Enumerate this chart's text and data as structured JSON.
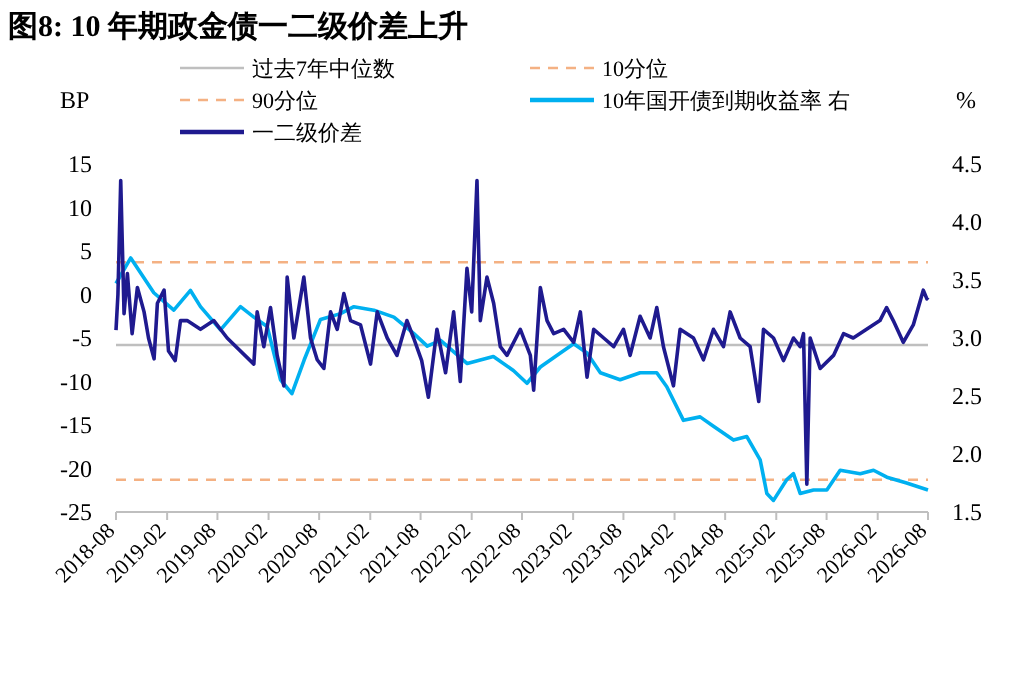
{
  "chart_data": {
    "type": "line",
    "title": "图8:  10 年期政金债一二级价差上升",
    "ylabel": "BP",
    "y2label": "%",
    "xlim": [
      "2018-08",
      "2026-08"
    ],
    "xticks": [
      "2018-08",
      "2019-02",
      "2019-08",
      "2020-02",
      "2020-08",
      "2021-02",
      "2021-08",
      "2022-02",
      "2022-08",
      "2023-02",
      "2023-08",
      "2024-02",
      "2024-08",
      "2025-02",
      "2025-08",
      "2026-02",
      "2026-08"
    ],
    "ylim": [
      -25,
      15
    ],
    "yticks": [
      -25,
      -20,
      -15,
      -10,
      -5,
      0,
      5,
      10,
      15
    ],
    "y2lim": [
      1.5,
      4.5
    ],
    "y2ticks": [
      1.5,
      {
        "value": 2,
        "label": "2.0"
      },
      2.5,
      {
        "value": 3,
        "label": "3.0"
      },
      3.5,
      {
        "value": 4,
        "label": "4.0"
      },
      4.5
    ],
    "legend": "top",
    "grid": false,
    "ref_lines": [
      {
        "axis": "y",
        "value": -5.8,
        "label": "过去7年中位数",
        "color": "#bfbfbf",
        "line_style": "solid"
      },
      {
        "axis": "y",
        "value": -21.3,
        "label": "10分位",
        "color": "#f4b183",
        "line_style": "dashed"
      },
      {
        "axis": "y",
        "value": 3.7,
        "label": "90分位",
        "color": "#f4b183",
        "line_style": "dashed"
      }
    ],
    "series": [
      {
        "name": "10年国开债到期收益率 右",
        "color": "#00b0f0",
        "axis": "y2",
        "x": [
          "2018-08-01",
          "2018-09-23",
          "2018-12-15",
          "2019-02-25",
          "2019-04-26",
          "2019-06-01",
          "2019-08-12",
          "2019-10-23",
          "2019-12-10",
          "2020-01-27",
          "2020-03-15",
          "2020-04-25",
          "2020-06-08",
          "2020-08-06",
          "2020-10-17",
          "2020-12-04",
          "2021-02-14",
          "2021-04-27",
          "2021-07-07",
          "2021-08-25",
          "2021-10-12",
          "2022-01-16",
          "2022-04-20",
          "2022-07-01",
          "2022-08-19",
          "2022-10-06",
          "2022-12-17",
          "2023-02-03",
          "2023-03-23",
          "2023-05-10",
          "2023-07-20",
          "2023-09-30",
          "2023-11-29",
          "2024-01-04",
          "2024-03-04",
          "2024-05-03",
          "2024-06-20",
          "2024-08-31",
          "2024-10-18",
          "2024-12-05",
          "2024-12-29",
          "2025-01-22",
          "2025-03-11",
          "2025-04-04",
          "2025-04-28",
          "2025-06-15",
          "2025-08-02",
          "2025-09-19",
          "2025-11-30",
          "2026-01-17",
          "2026-03-06",
          "2026-05-16",
          "2026-08-01"
        ],
        "values": [
          3.47,
          3.69,
          3.39,
          3.24,
          3.41,
          3.27,
          3.07,
          3.27,
          3.18,
          3.1,
          2.64,
          2.52,
          2.81,
          3.16,
          3.21,
          3.27,
          3.24,
          3.18,
          3.04,
          2.93,
          2.98,
          2.78,
          2.84,
          2.72,
          2.61,
          2.75,
          2.87,
          2.95,
          2.87,
          2.7,
          2.64,
          2.7,
          2.7,
          2.58,
          2.29,
          2.32,
          2.24,
          2.12,
          2.15,
          1.95,
          1.66,
          1.6,
          1.78,
          1.83,
          1.66,
          1.69,
          1.69,
          1.86,
          1.83,
          1.86,
          1.8,
          1.75,
          1.69
        ]
      },
      {
        "name": "一二级价差",
        "color": "#1f1a8f",
        "x": [
          "2018-08-01",
          "2018-08-08",
          "2018-08-18",
          "2018-08-30",
          "2018-09-11",
          "2018-09-28",
          "2018-10-17",
          "2018-11-10",
          "2018-11-26",
          "2018-12-16",
          "2018-12-28",
          "2019-01-21",
          "2019-02-06",
          "2019-03-02",
          "2019-03-21",
          "2019-04-14",
          "2019-06-01",
          "2019-07-19",
          "2019-09-05",
          "2019-12-10",
          "2019-12-22",
          "2020-01-15",
          "2020-02-08",
          "2020-03-03",
          "2020-03-27",
          "2020-04-08",
          "2020-05-02",
          "2020-06-07",
          "2020-07-01",
          "2020-07-25",
          "2020-08-18",
          "2020-09-11",
          "2020-10-05",
          "2020-10-29",
          "2020-11-22",
          "2020-12-28",
          "2021-02-02",
          "2021-02-26",
          "2021-04-03",
          "2021-05-08",
          "2021-06-13",
          "2021-07-07",
          "2021-08-05",
          "2021-08-29",
          "2021-09-29",
          "2021-10-30",
          "2021-11-28",
          "2021-12-22",
          "2022-01-15",
          "2022-02-01",
          "2022-02-20",
          "2022-03-04",
          "2022-03-28",
          "2022-04-21",
          "2022-05-15",
          "2022-06-08",
          "2022-07-26",
          "2022-08-31",
          "2022-09-12",
          "2022-10-06",
          "2022-10-30",
          "2022-11-23",
          "2022-12-29",
          "2023-02-03",
          "2023-02-27",
          "2023-03-23",
          "2023-04-16",
          "2023-05-22",
          "2023-06-27",
          "2023-08-01",
          "2023-08-25",
          "2023-09-30",
          "2023-11-05",
          "2023-11-29",
          "2023-12-23",
          "2024-01-28",
          "2024-02-21",
          "2024-04-09",
          "2024-05-15",
          "2024-06-20",
          "2024-07-26",
          "2024-08-19",
          "2024-09-24",
          "2024-10-30",
          "2024-11-30",
          "2024-12-17",
          "2025-01-22",
          "2025-02-27",
          "2025-04-04",
          "2025-04-28",
          "2025-05-10",
          "2025-05-22",
          "2025-06-03",
          "2025-07-09",
          "2025-08-26",
          "2025-10-01",
          "2025-11-05",
          "2025-12-23",
          "2026-02-09",
          "2026-03-05",
          "2026-03-29",
          "2026-05-04",
          "2026-06-09",
          "2026-07-15",
          "2026-07-28",
          "2026-08-01"
        ],
        "values": [
          -4.1,
          0,
          13.1,
          -2.2,
          2.4,
          -4.5,
          0.8,
          -2,
          -5,
          -7.4,
          -1,
          0.5,
          -6.5,
          -7.6,
          -3,
          -3,
          -4,
          -3,
          -5,
          -8,
          -2,
          -6,
          -1.5,
          -7,
          -10.5,
          2.0,
          -5,
          2,
          -5,
          -7.5,
          -8.5,
          -2,
          -4,
          0.1,
          -3,
          -3.5,
          -8,
          -2,
          -5,
          -7,
          -3,
          -5,
          -7.6,
          -11.8,
          -4,
          -9,
          -2,
          -10,
          3,
          -2,
          13.1,
          -3,
          2,
          -1,
          -6,
          -7,
          -4,
          -7,
          -11,
          0.8,
          -3,
          -4.5,
          -4,
          -5.5,
          -2,
          -9.5,
          -4,
          -5,
          -6,
          -4,
          -7,
          -2.5,
          -5,
          -1.5,
          -6,
          -10.5,
          -4,
          -5,
          -7.5,
          -4,
          -6,
          -2,
          -5,
          -6,
          -12.3,
          -4,
          -5,
          -7.6,
          -5,
          -6,
          -4.5,
          -21.8,
          -5,
          -8.5,
          -7,
          -4.5,
          -5,
          -4,
          -3,
          -1.5,
          -3,
          -5.5,
          -3.5,
          0.5,
          -0.5,
          -0.3
        ]
      }
    ]
  }
}
